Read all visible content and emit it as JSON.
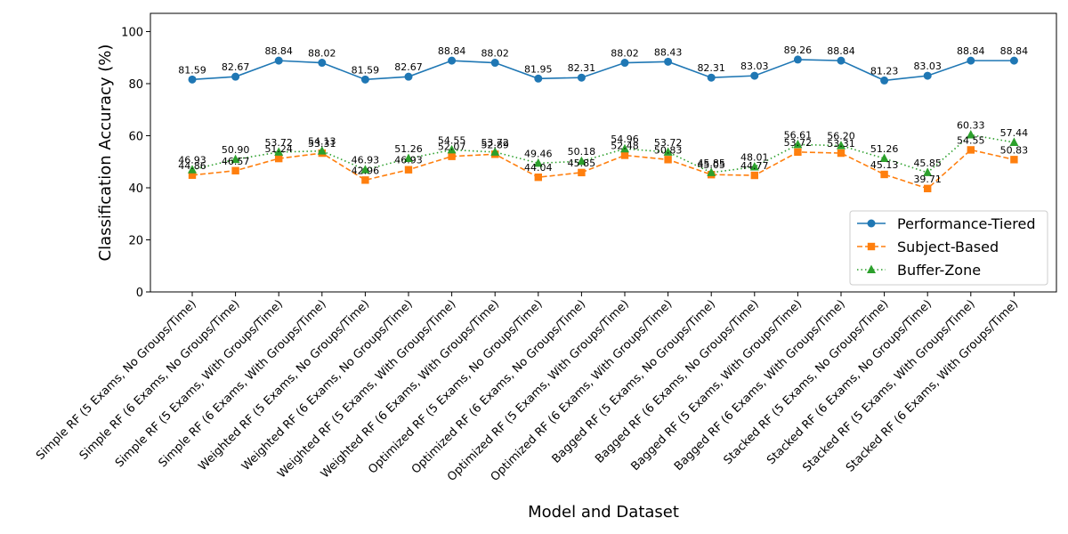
{
  "chart_data": {
    "type": "line",
    "title": "",
    "xlabel": "Model and Dataset",
    "ylabel": "Classification Accuracy (%)",
    "ylim": [
      0,
      107
    ],
    "yticks": [
      0,
      20,
      40,
      60,
      80,
      100
    ],
    "grid": false,
    "legend_position": "lower right",
    "categories": [
      "Simple RF (5 Exams, No Groups/Time)",
      "Simple RF (6 Exams, No Groups/Time)",
      "Simple RF (5 Exams, With Groups/Time)",
      "Simple RF (6 Exams, With Groups/Time)",
      "Weighted RF (5 Exams, No Groups/Time)",
      "Weighted RF (6 Exams, No Groups/Time)",
      "Weighted RF (5 Exams, With Groups/Time)",
      "Weighted RF (6 Exams, With Groups/Time)",
      "Optimized RF (5 Exams, No Groups/Time)",
      "Optimized RF (6 Exams, No Groups/Time)",
      "Optimized RF (5 Exams, With Groups/Time)",
      "Optimized RF (6 Exams, With Groups/Time)",
      "Bagged RF (5 Exams, No Groups/Time)",
      "Bagged RF (6 Exams, No Groups/Time)",
      "Bagged RF (5 Exams, With Groups/Time)",
      "Bagged RF (6 Exams, With Groups/Time)",
      "Stacked RF (5 Exams, No Groups/Time)",
      "Stacked RF (6 Exams, No Groups/Time)",
      "Stacked RF (5 Exams, With Groups/Time)",
      "Stacked RF (6 Exams, With Groups/Time)"
    ],
    "series": [
      {
        "name": "Performance-Tiered",
        "color": "#1f77b4",
        "marker": "circle",
        "linestyle": "solid",
        "values": [
          81.59,
          82.67,
          88.84,
          88.02,
          81.59,
          82.67,
          88.84,
          88.02,
          81.95,
          82.31,
          88.02,
          88.43,
          82.31,
          83.03,
          89.26,
          88.84,
          81.23,
          83.03,
          88.84,
          88.84
        ],
        "labels": [
          "81.59",
          "82.67",
          "88.84",
          "88.02",
          "81.59",
          "82.67",
          "88.84",
          "88.02",
          "81.95",
          "82.31",
          "88.02",
          "88.43",
          "82.31",
          "83.03",
          "89.26",
          "88.84",
          "81.23",
          "83.03",
          "88.84",
          "88.84"
        ]
      },
      {
        "name": "Subject-Based",
        "color": "#ff7f0e",
        "marker": "square",
        "linestyle": "dashed",
        "values": [
          44.86,
          46.57,
          51.24,
          53.31,
          42.96,
          46.93,
          52.07,
          52.89,
          44.04,
          45.85,
          52.48,
          50.83,
          45.05,
          44.77,
          53.72,
          53.31,
          45.13,
          39.71,
          54.55,
          50.83
        ],
        "labels": [
          "44.86",
          "46.57",
          "51.24",
          "53.31",
          "42.96",
          "46.93",
          "52.07",
          "52.89",
          "44.04",
          "45.85",
          "52.48",
          "50.83",
          "45.05",
          "44.77",
          "53.72",
          "53.31",
          "45.13",
          "39.71",
          "54.55",
          "50.83"
        ]
      },
      {
        "name": "Buffer-Zone",
        "color": "#2ca02c",
        "marker": "triangle",
        "linestyle": "dotted",
        "values": [
          46.93,
          50.9,
          53.72,
          54.13,
          46.93,
          51.26,
          54.55,
          53.72,
          49.46,
          50.18,
          54.96,
          53.72,
          45.85,
          48.01,
          56.61,
          56.2,
          51.26,
          45.85,
          60.33,
          57.44
        ],
        "labels": [
          "46.93",
          "50.90",
          "53.72",
          "54.13",
          "46.93",
          "51.26",
          "54.55",
          "53.72",
          "49.46",
          "50.18",
          "54.96",
          "53.72",
          "45.85",
          "48.01",
          "56.61",
          "56.20",
          "51.26",
          "45.85",
          "60.33",
          "57.44"
        ]
      }
    ]
  }
}
